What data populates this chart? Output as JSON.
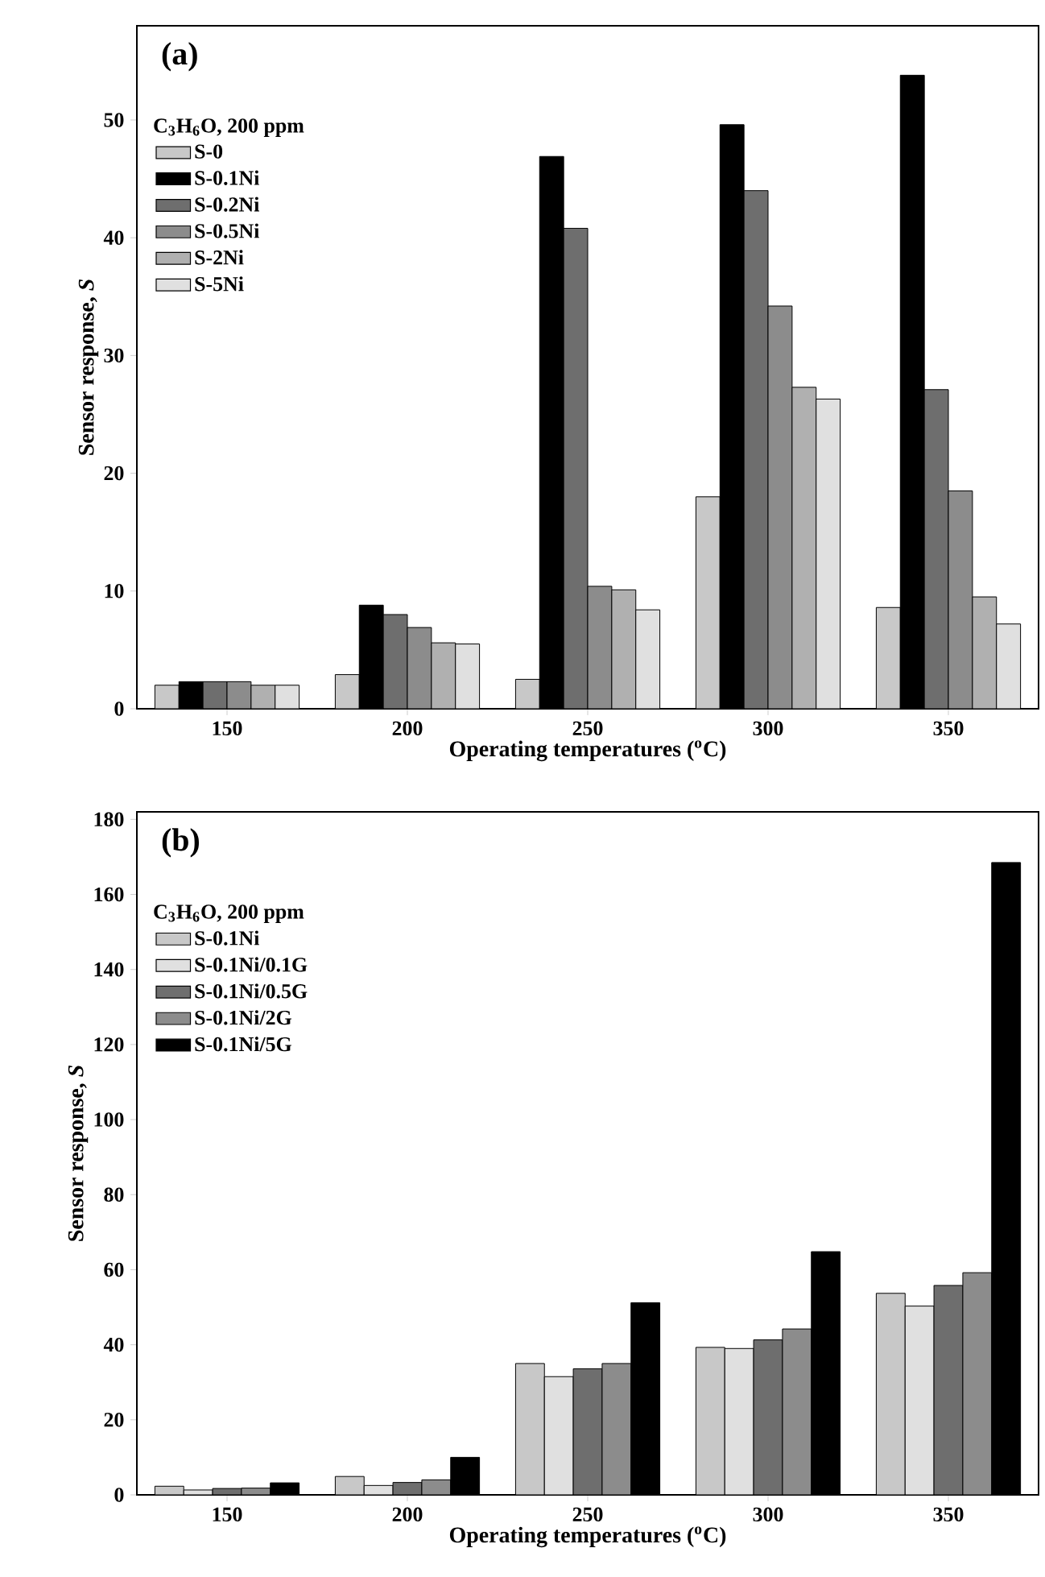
{
  "chart_data": [
    {
      "type": "bar",
      "title": "(a)",
      "legend_title": "C$_{3}$H$_{6}$O, 200 ppm",
      "xlabel": "Operating temperatures ($^{o}$C)",
      "ylabel": "Sensor response, *S*",
      "categories": [
        "150",
        "200",
        "250",
        "300",
        "350"
      ],
      "series": [
        {
          "name": "S-0",
          "color": "#c8c8c8",
          "values": [
            2.0,
            2.9,
            2.5,
            18.0,
            8.6
          ]
        },
        {
          "name": "S-0.1Ni",
          "color": "#000000",
          "values": [
            2.3,
            8.8,
            46.9,
            49.6,
            53.8
          ]
        },
        {
          "name": "S-0.2Ni",
          "color": "#6e6e6e",
          "values": [
            2.3,
            8.0,
            40.8,
            44.0,
            27.1
          ]
        },
        {
          "name": "S-0.5Ni",
          "color": "#8c8c8c",
          "values": [
            2.3,
            6.9,
            10.4,
            34.2,
            18.5
          ]
        },
        {
          "name": "S-2Ni",
          "color": "#b0b0b0",
          "values": [
            2.0,
            5.6,
            10.1,
            27.3,
            9.5
          ]
        },
        {
          "name": "S-5Ni",
          "color": "#e0e0e0",
          "values": [
            2.0,
            5.5,
            8.4,
            26.3,
            7.2
          ]
        }
      ],
      "ylim": [
        0,
        58
      ],
      "yticks": [
        0,
        10,
        20,
        30,
        40,
        50
      ],
      "legend": "top left"
    },
    {
      "type": "bar",
      "title": "(b)",
      "legend_title": "C$_{3}$H$_{6}$O, 200 ppm",
      "xlabel": "Operating temperatures ($^{o}$C)",
      "ylabel": "Sensor response, *S*",
      "categories": [
        "150",
        "200",
        "250",
        "300",
        "350"
      ],
      "series": [
        {
          "name": "S-0.1Ni",
          "color": "#c8c8c8",
          "values": [
            2.3,
            4.9,
            35.0,
            39.3,
            53.7
          ]
        },
        {
          "name": "S-0.1Ni/0.1G",
          "color": "#e0e0e0",
          "values": [
            1.3,
            2.5,
            31.5,
            39.0,
            50.3
          ]
        },
        {
          "name": "S-0.1Ni/0.5G",
          "color": "#6e6e6e",
          "values": [
            1.7,
            3.3,
            33.6,
            41.3,
            55.8
          ]
        },
        {
          "name": "S-0.1Ni/2G",
          "color": "#8c8c8c",
          "values": [
            1.8,
            4.0,
            35.0,
            44.2,
            59.2
          ]
        },
        {
          "name": "S-0.1Ni/5G",
          "color": "#000000",
          "values": [
            3.2,
            10.0,
            51.2,
            64.8,
            168.5
          ]
        }
      ],
      "ylim": [
        0,
        182
      ],
      "yticks": [
        0,
        20,
        40,
        60,
        80,
        100,
        120,
        140,
        160,
        180
      ],
      "legend": "top left"
    }
  ]
}
